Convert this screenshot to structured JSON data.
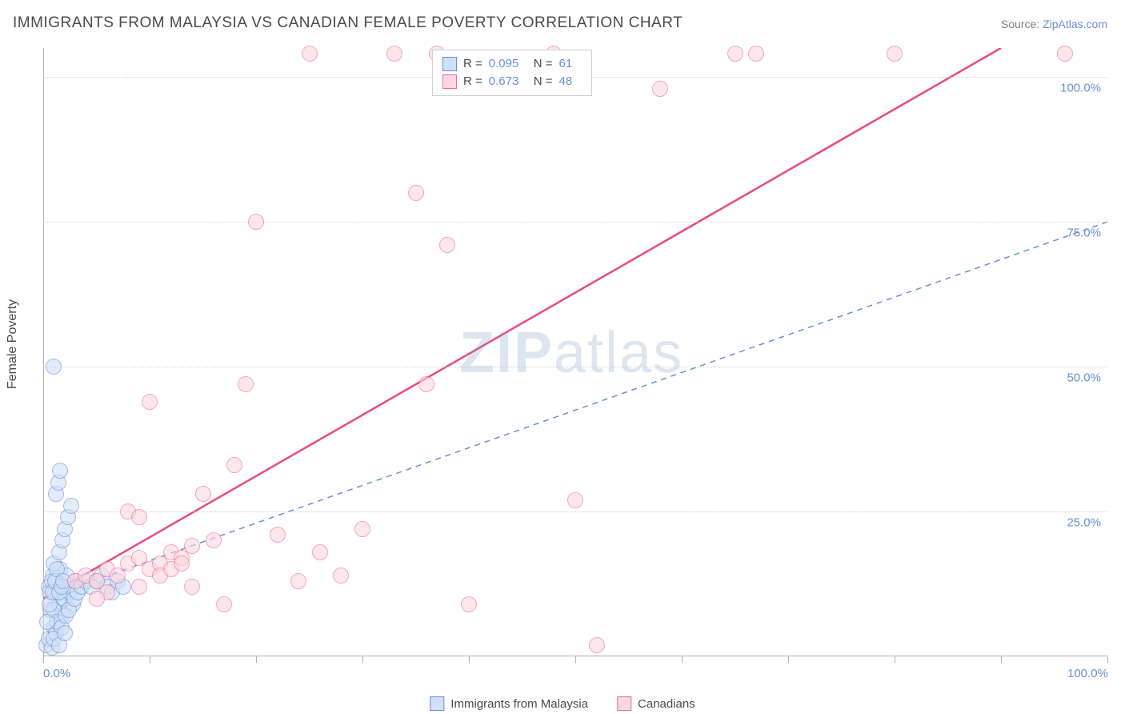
{
  "title": "IMMIGRANTS FROM MALAYSIA VS CANADIAN FEMALE POVERTY CORRELATION CHART",
  "source_prefix": "Source: ",
  "source_link": "ZipAtlas.com",
  "y_axis_label": "Female Poverty",
  "watermark_a": "ZIP",
  "watermark_b": "atlas",
  "chart": {
    "type": "scatter",
    "background_color": "#ffffff",
    "grid_color": "#cfcfcf",
    "axis_color": "#b0b0b0",
    "xlim": [
      0,
      100
    ],
    "ylim": [
      0,
      105
    ],
    "x_ticks": [
      0,
      10,
      20,
      30,
      40,
      50,
      60,
      70,
      80,
      90,
      100
    ],
    "x_tick_labels": {
      "0": "0.0%",
      "100": "100.0%"
    },
    "y_ticks": [
      25,
      50,
      75,
      100
    ],
    "y_tick_labels": {
      "25": "25.0%",
      "50": "50.0%",
      "75": "75.0%",
      "100": "100.0%"
    },
    "point_radius": 9,
    "point_stroke_width": 1.2,
    "series": [
      {
        "name": "Immigrants from Malaysia",
        "fill": "#cfe0f7",
        "stroke": "#6a8fd4",
        "fill_opacity": 0.6,
        "regression": {
          "x1": 0,
          "y1": 10,
          "x2": 100,
          "y2": 75,
          "dashed": true,
          "width": 1.5,
          "color": "#6a8fd4"
        },
        "stats": {
          "R": "0.095",
          "N": "61"
        },
        "points": [
          [
            0.3,
            2
          ],
          [
            0.5,
            3
          ],
          [
            0.8,
            1.5
          ],
          [
            1,
            5
          ],
          [
            1.2,
            4
          ],
          [
            1.4,
            6
          ],
          [
            0.7,
            8
          ],
          [
            1.5,
            9
          ],
          [
            1.8,
            7
          ],
          [
            2,
            10
          ],
          [
            2.2,
            12
          ],
          [
            0.5,
            12
          ],
          [
            0.9,
            14
          ],
          [
            1.1,
            11
          ],
          [
            1.3,
            13
          ],
          [
            1.6,
            15
          ],
          [
            1.9,
            10
          ],
          [
            2.5,
            11
          ],
          [
            3,
            13
          ],
          [
            3.5,
            12
          ],
          [
            2.8,
            9
          ],
          [
            2.2,
            14
          ],
          [
            1.0,
            16
          ],
          [
            1.5,
            18
          ],
          [
            1.8,
            20
          ],
          [
            2.0,
            22
          ],
          [
            2.3,
            24
          ],
          [
            2.6,
            26
          ],
          [
            1.2,
            28
          ],
          [
            1.4,
            30
          ],
          [
            1.6,
            32
          ],
          [
            0.6,
            11
          ],
          [
            0.8,
            13
          ],
          [
            1.0,
            8
          ],
          [
            1.3,
            6
          ],
          [
            1.7,
            5
          ],
          [
            2.1,
            7
          ],
          [
            2.4,
            8
          ],
          [
            2.9,
            10
          ],
          [
            3.2,
            11
          ],
          [
            3.6,
            12
          ],
          [
            4,
            13
          ],
          [
            4.5,
            12
          ],
          [
            5,
            13
          ],
          [
            5.5,
            14
          ],
          [
            6,
            12
          ],
          [
            6.5,
            11
          ],
          [
            7,
            13
          ],
          [
            7.5,
            12
          ],
          [
            1.0,
            3
          ],
          [
            1.5,
            2
          ],
          [
            2.0,
            4
          ],
          [
            0.4,
            6
          ],
          [
            0.6,
            9
          ],
          [
            0.9,
            11
          ],
          [
            1.1,
            13
          ],
          [
            1.3,
            15
          ],
          [
            1.5,
            11
          ],
          [
            1.7,
            12
          ],
          [
            1.9,
            13
          ],
          [
            1.0,
            50
          ]
        ]
      },
      {
        "name": "Canadians",
        "fill": "#fcd6e0",
        "stroke": "#e87090",
        "fill_opacity": 0.6,
        "regression": {
          "x1": 0,
          "y1": 10,
          "x2": 90,
          "y2": 105,
          "dashed": false,
          "width": 2.5,
          "color": "#ea4b7a"
        },
        "stats": {
          "R": "0.673",
          "N": "48"
        },
        "points": [
          [
            3,
            13
          ],
          [
            4,
            14
          ],
          [
            5,
            13
          ],
          [
            6,
            15
          ],
          [
            7,
            14
          ],
          [
            8,
            16
          ],
          [
            9,
            17
          ],
          [
            10,
            15
          ],
          [
            11,
            16
          ],
          [
            12,
            18
          ],
          [
            13,
            17
          ],
          [
            14,
            19
          ],
          [
            8,
            25
          ],
          [
            9,
            24
          ],
          [
            10,
            44
          ],
          [
            11,
            14
          ],
          [
            12,
            15
          ],
          [
            13,
            16
          ],
          [
            14,
            12
          ],
          [
            15,
            28
          ],
          [
            16,
            20
          ],
          [
            17,
            9
          ],
          [
            18,
            33
          ],
          [
            19,
            47
          ],
          [
            20,
            75
          ],
          [
            22,
            21
          ],
          [
            24,
            13
          ],
          [
            26,
            18
          ],
          [
            28,
            14
          ],
          [
            25,
            104
          ],
          [
            30,
            22
          ],
          [
            33,
            104
          ],
          [
            35,
            80
          ],
          [
            36,
            47
          ],
          [
            37,
            104
          ],
          [
            38,
            71
          ],
          [
            40,
            9
          ],
          [
            48,
            104
          ],
          [
            50,
            27
          ],
          [
            52,
            2
          ],
          [
            58,
            98
          ],
          [
            65,
            104
          ],
          [
            67,
            104
          ],
          [
            80,
            104
          ],
          [
            96,
            104
          ],
          [
            9,
            12
          ],
          [
            6,
            11
          ],
          [
            5,
            10
          ]
        ]
      }
    ],
    "stats_legend": {
      "labels": {
        "R": "R =",
        "N": "N ="
      }
    },
    "bottom_legend": [
      {
        "label": "Immigrants from Malaysia",
        "fill": "#cfe0f7",
        "stroke": "#6a8fd4"
      },
      {
        "label": "Canadians",
        "fill": "#fcd6e0",
        "stroke": "#e87090"
      }
    ]
  }
}
